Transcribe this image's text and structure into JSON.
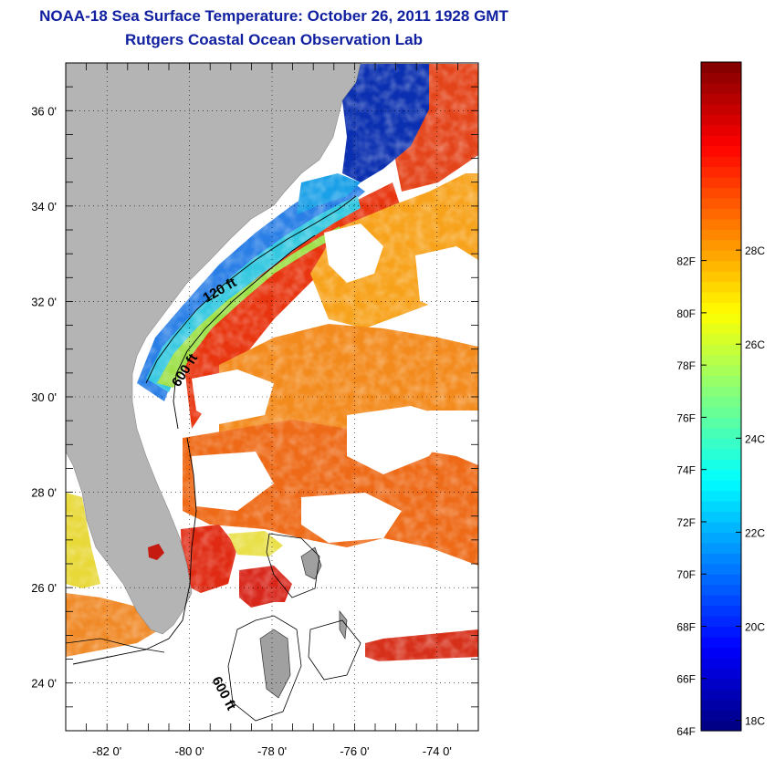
{
  "title_line1": "NOAA-18 Sea Surface Temperature:  October 26, 2011 1928 GMT",
  "title_line2": "Rutgers Coastal Ocean Observation Lab",
  "map": {
    "lat_labels": [
      "36 0'",
      "34 0'",
      "32 0'",
      "30 0'",
      "28 0'",
      "26 0'",
      "24 0'"
    ],
    "lon_labels": [
      "-82 0'",
      "-80 0'",
      "-78 0'",
      "-76 0'",
      "-74 0'"
    ],
    "lat_values": [
      36,
      34,
      32,
      30,
      28,
      26,
      24
    ],
    "lon_values": [
      -82,
      -80,
      -78,
      -76,
      -74
    ],
    "lat_range": [
      23,
      37
    ],
    "lon_range": [
      -83,
      -73
    ],
    "contours": [
      {
        "label": "120 ft",
        "depth_ft": 120
      },
      {
        "label": "600 ft",
        "depth_ft": 600
      },
      {
        "label": "600 ft",
        "depth_ft": 600
      }
    ],
    "land_color": "#b4b4b4",
    "cloud_color": "#ffffff"
  },
  "colorbar": {
    "f_labels": [
      "82F",
      "80F",
      "78F",
      "76F",
      "74F",
      "72F",
      "70F",
      "68F",
      "66F",
      "64F"
    ],
    "f_values": [
      82,
      80,
      78,
      76,
      74,
      72,
      70,
      68,
      66,
      64
    ],
    "c_labels": [
      "28C",
      "26C",
      "24C",
      "22C",
      "20C",
      "18C"
    ],
    "c_values": [
      28,
      26,
      24,
      22,
      20,
      18
    ],
    "range_f": [
      64,
      89.6
    ],
    "colormap": "jet"
  }
}
